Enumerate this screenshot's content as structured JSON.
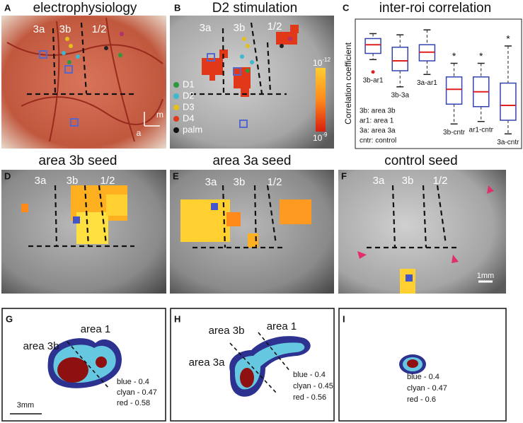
{
  "panels": {
    "a": {
      "letter": "A",
      "title": "electrophysiology",
      "labels": [
        "3a",
        "3b",
        "1/2",
        "m",
        "a"
      ]
    },
    "b": {
      "letter": "B",
      "title": "D2 stimulation",
      "labels": [
        "3a",
        "3b",
        "1/2"
      ],
      "legend": [
        {
          "name": "D1",
          "color": "#2c9a3c"
        },
        {
          "name": "D2",
          "color": "#3cb8d0"
        },
        {
          "name": "D3",
          "color": "#e4c01a"
        },
        {
          "name": "D4",
          "color": "#e03818"
        },
        {
          "name": "palm",
          "color": "#111111"
        }
      ],
      "colorbar": {
        "top": {
          "base": "10",
          "exp": "-12"
        },
        "bottom": {
          "base": "10",
          "exp": "-9"
        }
      }
    },
    "c": {
      "letter": "C"
    },
    "d": {
      "letter": "D",
      "title": "area 3b seed",
      "labels": [
        "3a",
        "3b",
        "1/2"
      ]
    },
    "e": {
      "letter": "E",
      "title": "area 3a seed",
      "labels": [
        "3a",
        "3b",
        "1/2"
      ]
    },
    "f": {
      "letter": "F",
      "title": "control seed",
      "labels": [
        "3a",
        "3b",
        "1/2"
      ],
      "scale": "1mm"
    },
    "g": {
      "letter": "G",
      "labels": [
        "area 1",
        "area 3b"
      ],
      "thresholds": [
        "blue - 0.4",
        "clyan - 0.47",
        "red - 0.58"
      ],
      "scale": "3mm"
    },
    "h": {
      "letter": "H",
      "labels": [
        "area 3b",
        "area 1",
        "area 3a"
      ],
      "thresholds": [
        "blue - 0.4",
        "clyan - 0.45",
        "red - 0.56"
      ]
    },
    "i": {
      "letter": "I",
      "thresholds": [
        "blue - 0.4",
        "clyan - 0.47",
        "red - 0.6"
      ]
    }
  },
  "chart_data": {
    "type": "box",
    "title": "inter-roi correlation",
    "y_label": "Correlation coefficient",
    "categories": [
      "3b-ar1",
      "3b-3a",
      "3a-ar1",
      "3b-cntr",
      "ar1-cntr",
      "3a-cntr"
    ],
    "whisker_low": [
      0.69,
      0.47,
      0.57,
      0.17,
      0.19,
      0.09
    ],
    "q1": [
      0.74,
      0.6,
      0.68,
      0.33,
      0.31,
      0.2
    ],
    "median": [
      0.81,
      0.68,
      0.75,
      0.45,
      0.43,
      0.32
    ],
    "q3": [
      0.86,
      0.79,
      0.81,
      0.55,
      0.55,
      0.5
    ],
    "whisker_high": [
      0.9,
      0.89,
      0.93,
      0.66,
      0.66,
      0.8
    ],
    "outliers": [
      [
        0.59
      ],
      [],
      [],
      [],
      [],
      []
    ],
    "significance": [
      null,
      null,
      null,
      "*",
      "*",
      "*"
    ],
    "notes": [
      "3b: area 3b",
      "ar1: area 1",
      "3a: area 3a",
      "cntr: control"
    ],
    "box_color": "#3344b0",
    "median_color": "#e02020",
    "ylim": [
      0,
      1
    ],
    "yticks": []
  }
}
